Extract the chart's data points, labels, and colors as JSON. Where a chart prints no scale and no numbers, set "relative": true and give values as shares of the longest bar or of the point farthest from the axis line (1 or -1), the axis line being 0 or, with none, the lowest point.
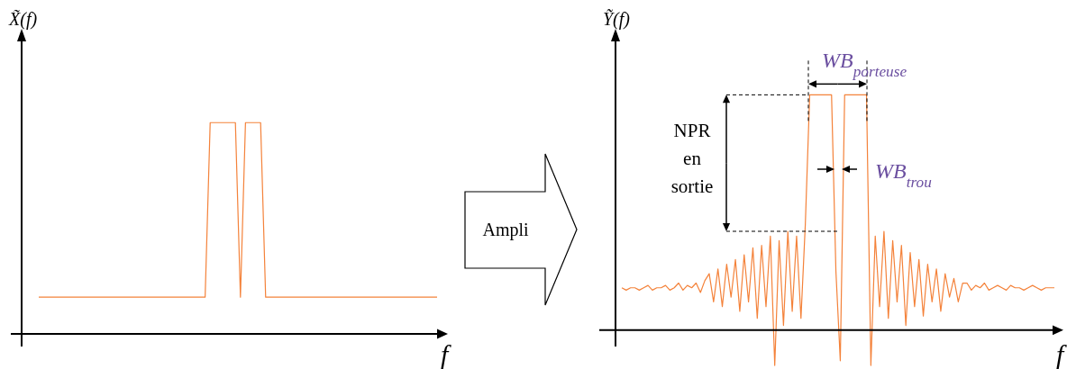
{
  "chart_data": [
    {
      "type": "line",
      "relative": true,
      "ylabel": "X̃(f)",
      "xlabel": "f",
      "color": "#f4823a",
      "categories": [
        null,
        null,
        null,
        null,
        null,
        null,
        null,
        null,
        null,
        null,
        null,
        null,
        null,
        null,
        null,
        null,
        null,
        null,
        null,
        null,
        null,
        null,
        null,
        null,
        null,
        null,
        null,
        null,
        null,
        null,
        null,
        null,
        null,
        null,
        null,
        null,
        null,
        null,
        null,
        null,
        null,
        null,
        null,
        null,
        null,
        null,
        null,
        null,
        null,
        null,
        null,
        null,
        null,
        null,
        null,
        null,
        null,
        null,
        null,
        null,
        null,
        null,
        null,
        null,
        null,
        null,
        null,
        null,
        null,
        null,
        null,
        null,
        null,
        null,
        null,
        null,
        null,
        null,
        null,
        null
      ],
      "values": [
        0.174,
        0.174,
        0.174,
        0.174,
        0.174,
        0.174,
        0.174,
        0.174,
        0.174,
        0.174,
        0.174,
        0.174,
        0.174,
        0.174,
        0.174,
        0.174,
        0.174,
        0.174,
        0.174,
        0.174,
        0.174,
        0.174,
        0.174,
        0.174,
        0.174,
        0.174,
        0.174,
        0.174,
        0.174,
        0.174,
        0.174,
        0.174,
        0.174,
        0.174,
        1,
        1,
        1,
        1,
        1,
        1,
        0.174,
        1,
        1,
        1,
        1,
        0.174,
        0.174,
        0.174,
        0.174,
        0.174,
        0.174,
        0.174,
        0.174,
        0.174,
        0.174,
        0.174,
        0.174,
        0.174,
        0.174,
        0.174,
        0.174,
        0.174,
        0.174,
        0.174,
        0.174,
        0.174,
        0.174,
        0.174,
        0.174,
        0.174,
        0.174,
        0.174,
        0.174,
        0.174,
        0.174,
        0.174,
        0.174,
        0.174,
        0.174,
        0.174
      ]
    },
    {
      "type": "other",
      "annotations": [
        "Ampli"
      ]
    },
    {
      "type": "line",
      "relative": true,
      "ylabel": "Ỹ(f)",
      "xlabel": "f",
      "color": "#f4823a",
      "annotations": [
        "WB$_{porteuse}$",
        "NPR en sortie",
        "WB$_{trou}$"
      ],
      "categories": [
        null,
        null,
        null,
        null,
        null,
        null,
        null,
        null,
        null,
        null,
        null,
        null,
        null,
        null,
        null,
        null,
        null,
        null,
        null,
        null,
        null,
        null,
        null,
        null,
        null,
        null,
        null,
        null,
        null,
        null,
        null,
        null,
        null,
        null,
        null,
        null,
        null,
        null,
        null,
        null,
        null,
        null,
        null,
        null,
        null,
        null,
        null,
        null,
        null,
        null,
        null,
        null,
        null,
        null,
        null,
        null,
        null,
        null,
        null,
        null,
        null,
        null,
        null,
        null,
        null,
        null,
        null,
        null,
        null,
        null,
        null,
        null,
        null,
        null,
        null,
        null,
        null,
        null,
        null,
        null,
        null,
        null,
        null,
        null,
        null,
        null,
        null,
        null,
        null,
        null,
        null,
        null,
        null,
        null,
        null,
        null,
        null,
        null,
        null,
        null
      ],
      "values": [
        0.18,
        0.17,
        0.18,
        0.18,
        0.17,
        0.18,
        0.19,
        0.17,
        0.18,
        0.18,
        0.19,
        0.17,
        0.18,
        0.2,
        0.17,
        0.19,
        0.18,
        0.2,
        0.16,
        0.21,
        0.24,
        0.12,
        0.26,
        0.1,
        0.28,
        0.14,
        0.3,
        0.08,
        0.32,
        0.12,
        0.35,
        0.05,
        0.36,
        0.1,
        0.4,
        -0.15,
        0.38,
        0.02,
        0.42,
        0.08,
        0.4,
        0.05,
        0.45,
        1,
        1,
        1,
        1,
        1,
        1,
        0.25,
        -0.13,
        1,
        1,
        1,
        1,
        1,
        1,
        -0.15,
        0.4,
        0.1,
        0.42,
        0.05,
        0.38,
        0.12,
        0.36,
        0.02,
        0.33,
        0.1,
        0.3,
        0.06,
        0.28,
        0.12,
        0.26,
        0.08,
        0.24,
        0.14,
        0.22,
        0.12,
        0.2,
        0.2,
        0.17,
        0.19,
        0.18,
        0.2,
        0.17,
        0.18,
        0.19,
        0.18,
        0.17,
        0.19,
        0.18,
        0.18,
        0.17,
        0.18,
        0.19,
        0.18,
        0.17,
        0.18,
        0.18,
        0.18
      ]
    }
  ]
}
